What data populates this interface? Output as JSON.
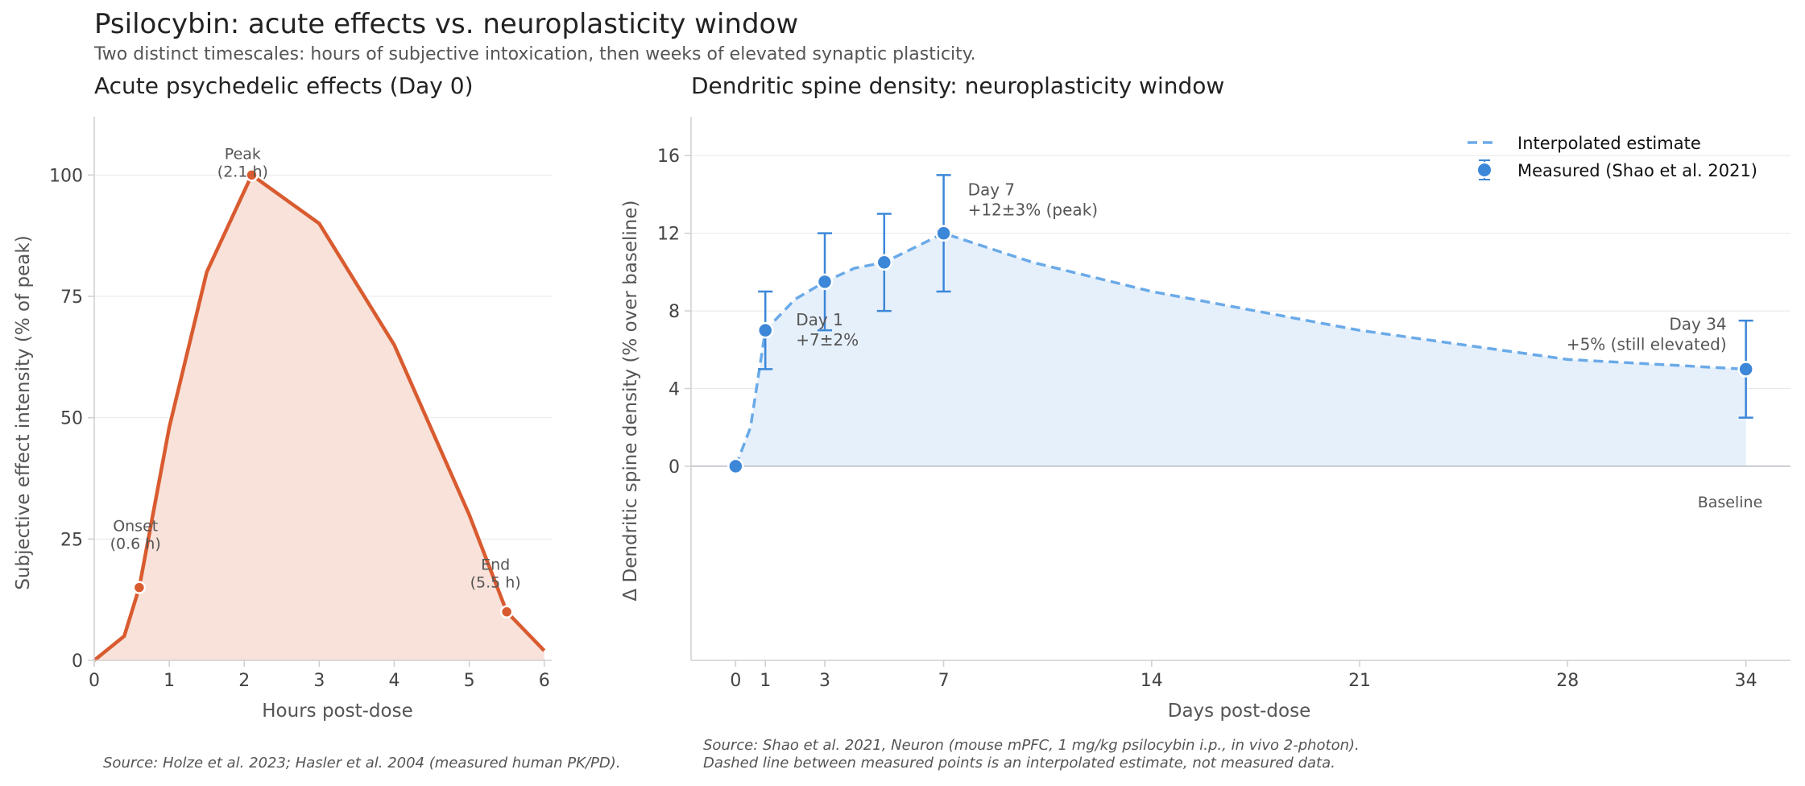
{
  "title": "Psilocybin: acute effects vs. neuroplasticity window",
  "subtitle": "Two distinct timescales: hours of subjective intoxication, then weeks of elevated synaptic plasticity.",
  "colors": {
    "acute_line": "#d95b30",
    "acute_fill": "#f8e2da",
    "measured": "#3d87d8",
    "interpolated": "#6aaae8",
    "spine_fill": "#e6f0fb",
    "grid": "#e8e8e8",
    "axis": "#cfcfcf"
  },
  "sources": {
    "left": "Source: Holze et al. 2023; Hasler et al. 2004 (measured human PK/PD).",
    "right_line1": "Source: Shao et al. 2021, Neuron (mouse mPFC, 1 mg/kg psilocybin i.p., in vivo 2-photon).",
    "right_line2": "Dashed line between measured points is an interpolated estimate, not measured data."
  },
  "chart_data": [
    {
      "type": "area",
      "title": "Acute psychedelic effects (Day 0)",
      "xlabel": "Hours post-dose",
      "ylabel": "Subjective effect intensity (% of peak)",
      "xlim": [
        0,
        6.1
      ],
      "ylim": [
        0,
        112
      ],
      "xticks": [
        0,
        1,
        2,
        3,
        4,
        5,
        6
      ],
      "yticks": [
        0,
        25,
        50,
        75,
        100
      ],
      "grid": "horizontal",
      "series": [
        {
          "x": [
            0,
            0.4,
            0.6,
            1.0,
            1.5,
            2.1,
            3.0,
            4.0,
            5.0,
            5.5,
            6.0
          ],
          "y": [
            0,
            5,
            15,
            48,
            80,
            100,
            90,
            65,
            30,
            10,
            2
          ]
        }
      ],
      "markers": [
        {
          "x": 0.6,
          "y": 15,
          "label_line1": "Onset",
          "label_line2": "(0.6 h)"
        },
        {
          "x": 2.1,
          "y": 100,
          "label_line1": "Peak",
          "label_line2": "(2.1 h)"
        },
        {
          "x": 5.5,
          "y": 10,
          "label_line1": "End",
          "label_line2": "(5.5 h)"
        }
      ]
    },
    {
      "type": "line",
      "title": "Dendritic spine density: neuroplasticity window",
      "xlabel": "Days post-dose",
      "ylabel": "Δ Dendritic spine density (% over baseline)",
      "xlim": [
        -1.5,
        35.5
      ],
      "ylim": [
        -10,
        18
      ],
      "xticks": [
        0,
        1,
        3,
        7,
        14,
        21,
        28,
        34
      ],
      "yticks": [
        0,
        4,
        8,
        12,
        16
      ],
      "grid": "horizontal",
      "legend": "top-right",
      "baseline_label": "Baseline",
      "series": [
        {
          "name": "Interpolated estimate",
          "style": "dashed",
          "x": [
            0,
            0.5,
            1,
            2,
            3,
            4,
            5,
            7,
            10,
            14,
            21,
            28,
            34
          ],
          "y": [
            0,
            2,
            7,
            8.6,
            9.5,
            10.2,
            10.5,
            12,
            10.5,
            9,
            7,
            5.5,
            5
          ]
        },
        {
          "name": "Measured (Shao et al. 2021)",
          "style": "markers",
          "x": [
            0,
            1,
            3,
            5,
            7,
            34
          ],
          "y": [
            0,
            7,
            9.5,
            10.5,
            12,
            5
          ],
          "error": [
            null,
            2,
            2.5,
            2.5,
            3,
            2.5
          ]
        }
      ],
      "annotations": [
        {
          "x": 7,
          "y": 12,
          "line1": "Day 7",
          "line2": "+12±3% (peak)"
        },
        {
          "x": 1,
          "y": 7,
          "line1": "Day 1",
          "line2": "+7±2%"
        },
        {
          "x": 34,
          "y": 5,
          "line1": "Day 34",
          "line2": "+5% (still elevated)"
        }
      ]
    }
  ]
}
